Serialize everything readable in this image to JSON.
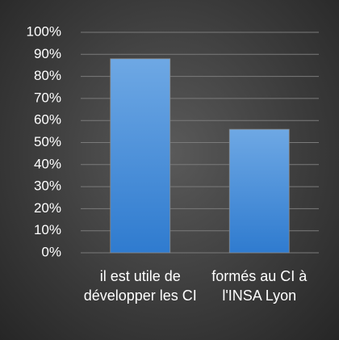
{
  "chart_data": {
    "type": "bar",
    "categories": [
      "il est utile de développer les CI",
      "formés au CI à l'INSA Lyon"
    ],
    "values": [
      88,
      56
    ],
    "color": "#3f8ad8",
    "ylim": [
      0,
      100
    ],
    "yticks": [
      {
        "value": 0,
        "label": "0%"
      },
      {
        "value": 10,
        "label": "10%"
      },
      {
        "value": 20,
        "label": "20%"
      },
      {
        "value": 30,
        "label": "30%"
      },
      {
        "value": 40,
        "label": "40%"
      },
      {
        "value": 50,
        "label": "50%"
      },
      {
        "value": 60,
        "label": "60%"
      },
      {
        "value": 70,
        "label": "70%"
      },
      {
        "value": 80,
        "label": "80%"
      },
      {
        "value": 90,
        "label": "90%"
      },
      {
        "value": 100,
        "label": "100%"
      }
    ],
    "grid": true
  }
}
